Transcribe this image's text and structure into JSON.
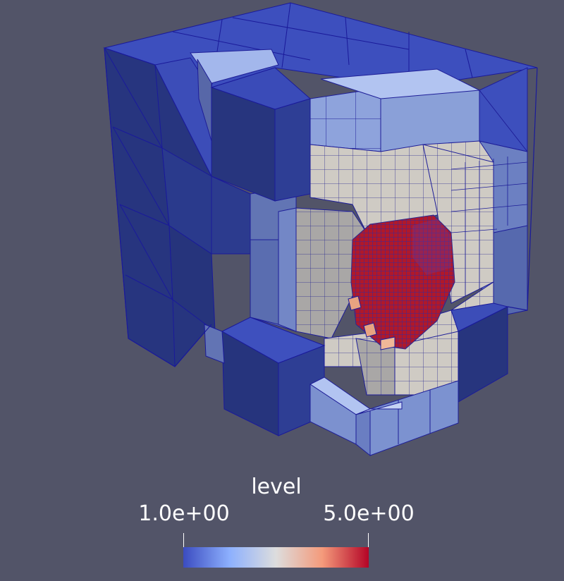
{
  "legend": {
    "title": "level",
    "min_label": "1.0e+00",
    "max_label": "5.0e+00",
    "colormap": [
      "#3b4cc0",
      "#8db0fe",
      "#dddddd",
      "#f49a7b",
      "#b40426"
    ]
  },
  "colors": {
    "background": "#525468",
    "edge": "#1a1a9a"
  }
}
